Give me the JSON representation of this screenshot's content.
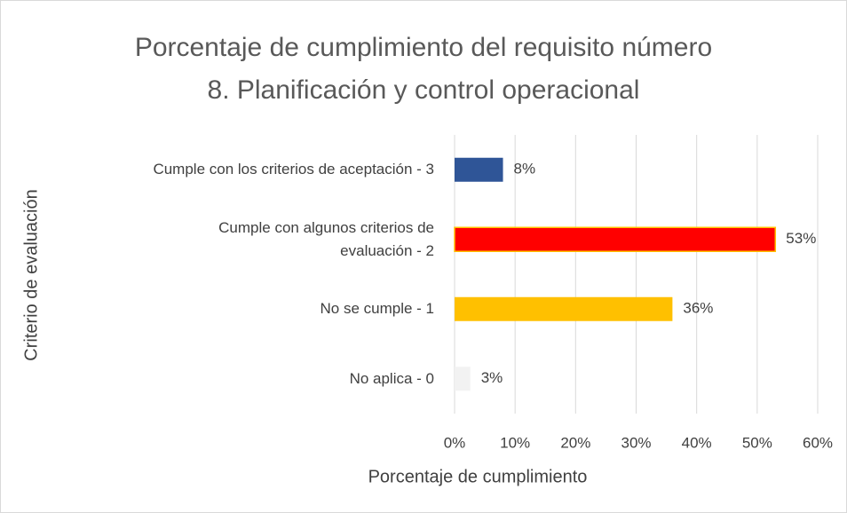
{
  "chart_data": {
    "type": "bar",
    "orientation": "horizontal",
    "title": "Porcentaje de cumplimiento del requisito número 8. Planificación y control operacional",
    "x_label": "Porcentaje de cumplimiento",
    "y_label": "Criterio de evaluación",
    "categories": [
      "Cumple con los criterios de aceptación - 3",
      "Cumple con algunos criterios de evaluación - 2",
      "No se cumple - 1",
      "No aplica - 0"
    ],
    "values": [
      8,
      53,
      36,
      2.6
    ],
    "value_labels": [
      "8%",
      "53%",
      "36%",
      "3%"
    ],
    "colors": [
      "#2f5597",
      "#ff0000",
      "#ffc000",
      "#f2f2f2"
    ],
    "xlim": [
      0,
      60
    ],
    "xticks": [
      {
        "value": 0,
        "label": "0%"
      },
      {
        "value": 10,
        "label": "10%"
      },
      {
        "value": 20,
        "label": "20%"
      },
      {
        "value": 30,
        "label": "30%"
      },
      {
        "value": 40,
        "label": "40%"
      },
      {
        "value": 50,
        "label": "50%"
      },
      {
        "value": 60,
        "label": "60%"
      }
    ],
    "grid": true
  }
}
